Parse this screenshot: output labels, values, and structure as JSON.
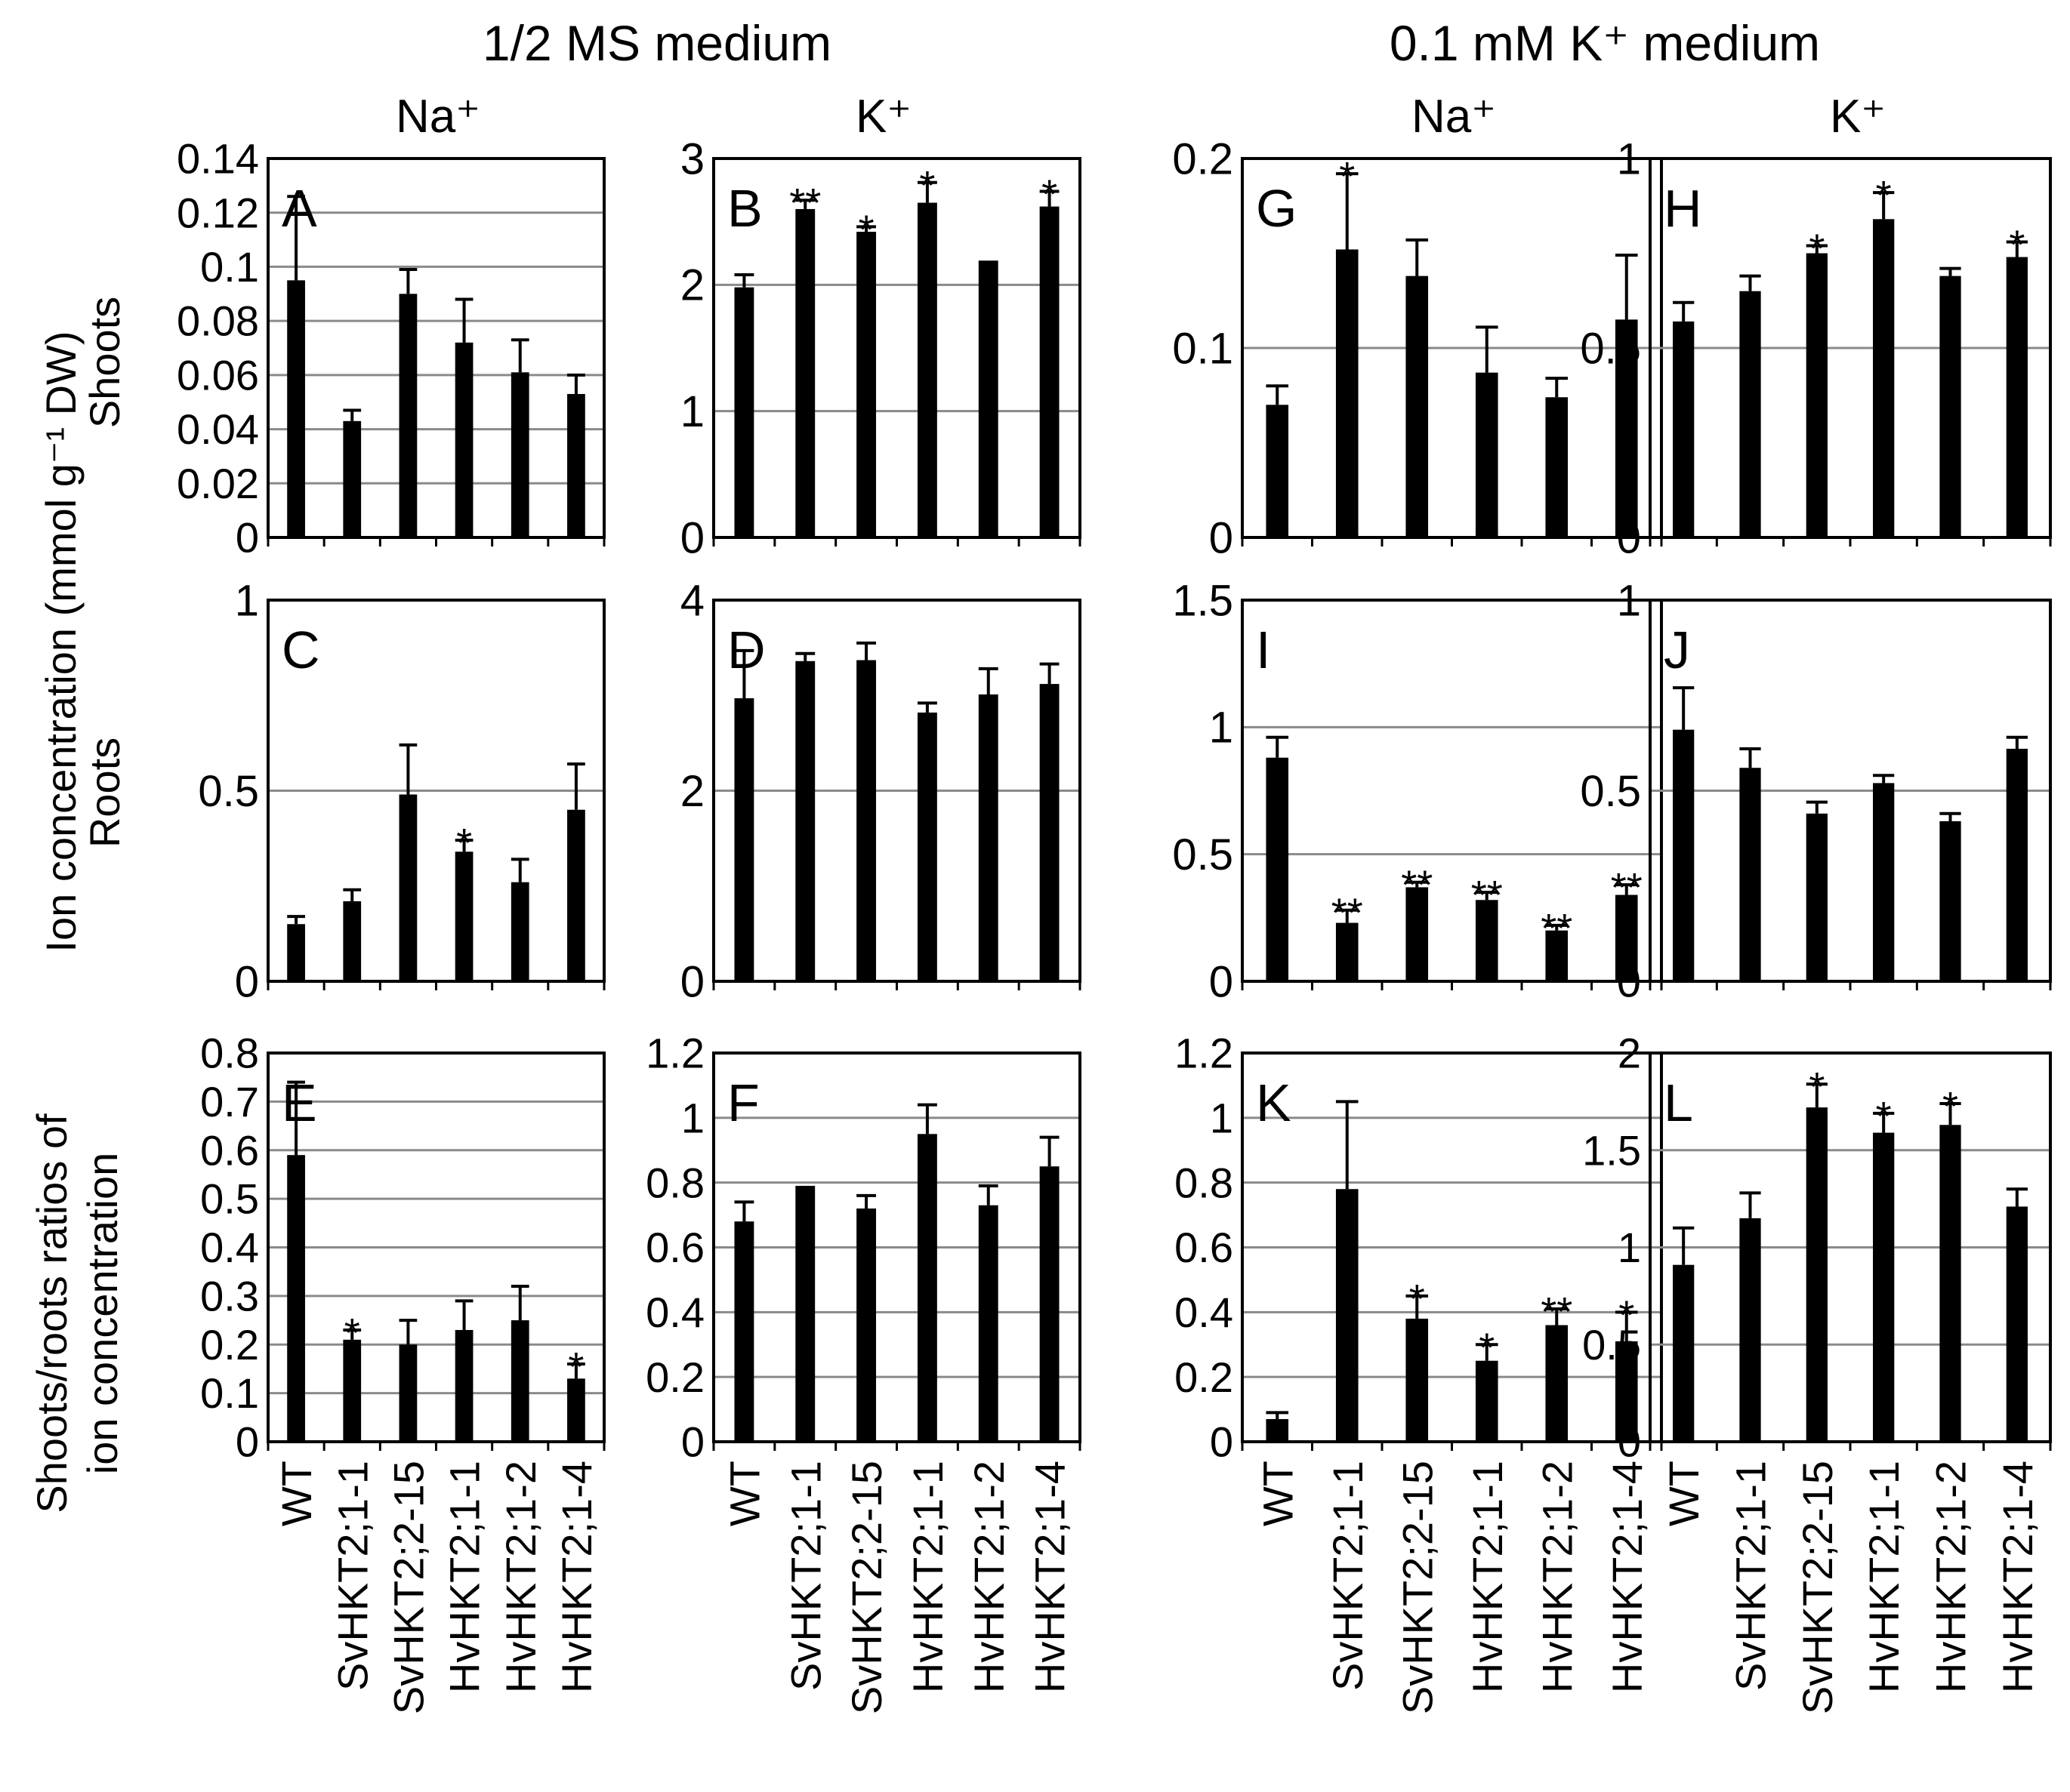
{
  "headers": {
    "ms": "1/2 MS medium",
    "k": "0.1 mM K⁺ medium",
    "na": "Na⁺",
    "kion": "K⁺"
  },
  "ylabels": {
    "line1": "Ion concentration (mmol g⁻¹ DW)",
    "shoots": "Shoots",
    "roots": "Roots",
    "ratio1": "Shoots/roots ratios of",
    "ratio2": "ion concentration"
  },
  "categories": [
    "WT",
    "SvHKT2;1-1",
    "SvHKT2;2-15",
    "HvHKT2;1-1",
    "HvHKT2;1-2",
    "HvHKT2;1-4"
  ],
  "chart_data": [
    {
      "type": "bar",
      "label": "A",
      "ylim": [
        0,
        0.14
      ],
      "ticks": [
        "0",
        "0.02",
        "0.04",
        "0.06",
        "0.08",
        "0.1",
        "0.12",
        "0.14"
      ],
      "tickvals": [
        0,
        0.02,
        0.04,
        0.06,
        0.08,
        0.1,
        0.12,
        0.14
      ],
      "values": [
        0.095,
        0.043,
        0.09,
        0.072,
        0.061,
        0.053
      ],
      "errors": [
        0.031,
        0.004,
        0.009,
        0.016,
        0.012,
        0.007
      ],
      "stars": [
        "",
        "",
        "",
        "",
        "",
        ""
      ]
    },
    {
      "type": "bar",
      "label": "B",
      "ylim": [
        0,
        3
      ],
      "ticks": [
        "0",
        "1",
        "2",
        "3"
      ],
      "tickvals": [
        0,
        1,
        2,
        3
      ],
      "values": [
        1.98,
        2.6,
        2.42,
        2.65,
        2.17,
        2.62
      ],
      "errors": [
        0.1,
        0.07,
        0.04,
        0.16,
        0.01,
        0.12
      ],
      "stars": [
        "",
        "**",
        "*",
        "*",
        "",
        "*"
      ]
    },
    {
      "type": "bar",
      "label": "G",
      "ylim": [
        0,
        0.2
      ],
      "ticks": [
        "0",
        "0.1",
        "0.2"
      ],
      "tickvals": [
        0,
        0.1,
        0.2
      ],
      "values": [
        0.07,
        0.152,
        0.138,
        0.087,
        0.074,
        0.115
      ],
      "errors": [
        0.01,
        0.04,
        0.019,
        0.024,
        0.01,
        0.034
      ],
      "stars": [
        "",
        "*",
        "",
        "",
        "",
        ""
      ]
    },
    {
      "type": "bar",
      "label": "H",
      "ylim": [
        0,
        1
      ],
      "ticks": [
        "0",
        "0.5",
        "1"
      ],
      "tickvals": [
        0,
        0.5,
        1
      ],
      "values": [
        0.57,
        0.65,
        0.75,
        0.84,
        0.69,
        0.74
      ],
      "errors": [
        0.05,
        0.04,
        0.02,
        0.07,
        0.02,
        0.04
      ],
      "stars": [
        "",
        "",
        "*",
        "*",
        "",
        "*"
      ]
    },
    {
      "type": "bar",
      "label": "C",
      "ylim": [
        0,
        1
      ],
      "ticks": [
        "0",
        "0.5",
        "1"
      ],
      "tickvals": [
        0,
        0.5,
        1
      ],
      "values": [
        0.15,
        0.21,
        0.49,
        0.34,
        0.26,
        0.45
      ],
      "errors": [
        0.02,
        0.03,
        0.13,
        0.03,
        0.06,
        0.12
      ],
      "stars": [
        "",
        "",
        "",
        "*",
        "",
        ""
      ]
    },
    {
      "type": "bar",
      "label": "D",
      "ylim": [
        0,
        4
      ],
      "ticks": [
        "0",
        "2",
        "4"
      ],
      "tickvals": [
        0,
        2,
        4
      ],
      "values": [
        2.97,
        3.36,
        3.37,
        2.82,
        3.01,
        3.12
      ],
      "errors": [
        0.5,
        0.08,
        0.18,
        0.1,
        0.27,
        0.21
      ],
      "stars": [
        "",
        "",
        "",
        "",
        "",
        ""
      ]
    },
    {
      "type": "bar",
      "label": "I",
      "ylim": [
        0,
        1.5
      ],
      "ticks": [
        "0",
        "0.5",
        "1",
        "1.5"
      ],
      "tickvals": [
        0,
        0.5,
        1,
        1.5
      ],
      "values": [
        0.88,
        0.23,
        0.37,
        0.32,
        0.2,
        0.34
      ],
      "errors": [
        0.08,
        0.05,
        0.02,
        0.03,
        0.02,
        0.04
      ],
      "stars": [
        "",
        "**",
        "**",
        "**",
        "**",
        "**"
      ]
    },
    {
      "type": "bar",
      "label": "J",
      "ylim": [
        0,
        1
      ],
      "ticks": [
        "0",
        "0.5",
        "1"
      ],
      "tickvals": [
        0,
        0.5,
        1
      ],
      "values": [
        0.66,
        0.56,
        0.44,
        0.52,
        0.42,
        0.61
      ],
      "errors": [
        0.11,
        0.05,
        0.03,
        0.02,
        0.02,
        0.03
      ],
      "stars": [
        "",
        "",
        "",
        "",
        "",
        ""
      ]
    },
    {
      "type": "bar",
      "label": "E",
      "ylim": [
        0,
        0.8
      ],
      "ticks": [
        "0",
        "0.1",
        "0.2",
        "0.3",
        "0.4",
        "0.5",
        "0.6",
        "0.7",
        "0.8"
      ],
      "tickvals": [
        0,
        0.1,
        0.2,
        0.3,
        0.4,
        0.5,
        0.6,
        0.7,
        0.8
      ],
      "values": [
        0.59,
        0.21,
        0.2,
        0.23,
        0.25,
        0.13
      ],
      "errors": [
        0.15,
        0.02,
        0.05,
        0.06,
        0.07,
        0.03
      ],
      "stars": [
        "",
        "*",
        "",
        "",
        "",
        "*"
      ]
    },
    {
      "type": "bar",
      "label": "F",
      "ylim": [
        0,
        1.2
      ],
      "ticks": [
        "0",
        "0.2",
        "0.4",
        "0.6",
        "0.8",
        "1",
        "1.2"
      ],
      "tickvals": [
        0,
        0.2,
        0.4,
        0.6,
        0.8,
        1,
        1.2
      ],
      "values": [
        0.68,
        0.79,
        0.72,
        0.95,
        0.73,
        0.85
      ],
      "errors": [
        0.06,
        0.0,
        0.04,
        0.09,
        0.06,
        0.09
      ],
      "stars": [
        "",
        "",
        "",
        "",
        "",
        ""
      ]
    },
    {
      "type": "bar",
      "label": "K",
      "ylim": [
        0,
        1.2
      ],
      "ticks": [
        "0",
        "0.2",
        "0.4",
        "0.6",
        "0.8",
        "1",
        "1.2"
      ],
      "tickvals": [
        0,
        0.2,
        0.4,
        0.6,
        0.8,
        1,
        1.2
      ],
      "values": [
        0.07,
        0.78,
        0.38,
        0.25,
        0.36,
        0.31
      ],
      "errors": [
        0.02,
        0.27,
        0.07,
        0.05,
        0.05,
        0.09
      ],
      "stars": [
        "",
        "",
        "*",
        "*",
        "**",
        "*"
      ]
    },
    {
      "type": "bar",
      "label": "L",
      "ylim": [
        0,
        2
      ],
      "ticks": [
        "0",
        "0.5",
        "1",
        "1.5",
        "2"
      ],
      "tickvals": [
        0,
        0.5,
        1,
        1.5,
        2
      ],
      "values": [
        0.91,
        1.15,
        1.72,
        1.59,
        1.63,
        1.21
      ],
      "errors": [
        0.19,
        0.13,
        0.12,
        0.1,
        0.11,
        0.09
      ],
      "stars": [
        "",
        "",
        "*",
        "*",
        "*",
        ""
      ]
    }
  ]
}
